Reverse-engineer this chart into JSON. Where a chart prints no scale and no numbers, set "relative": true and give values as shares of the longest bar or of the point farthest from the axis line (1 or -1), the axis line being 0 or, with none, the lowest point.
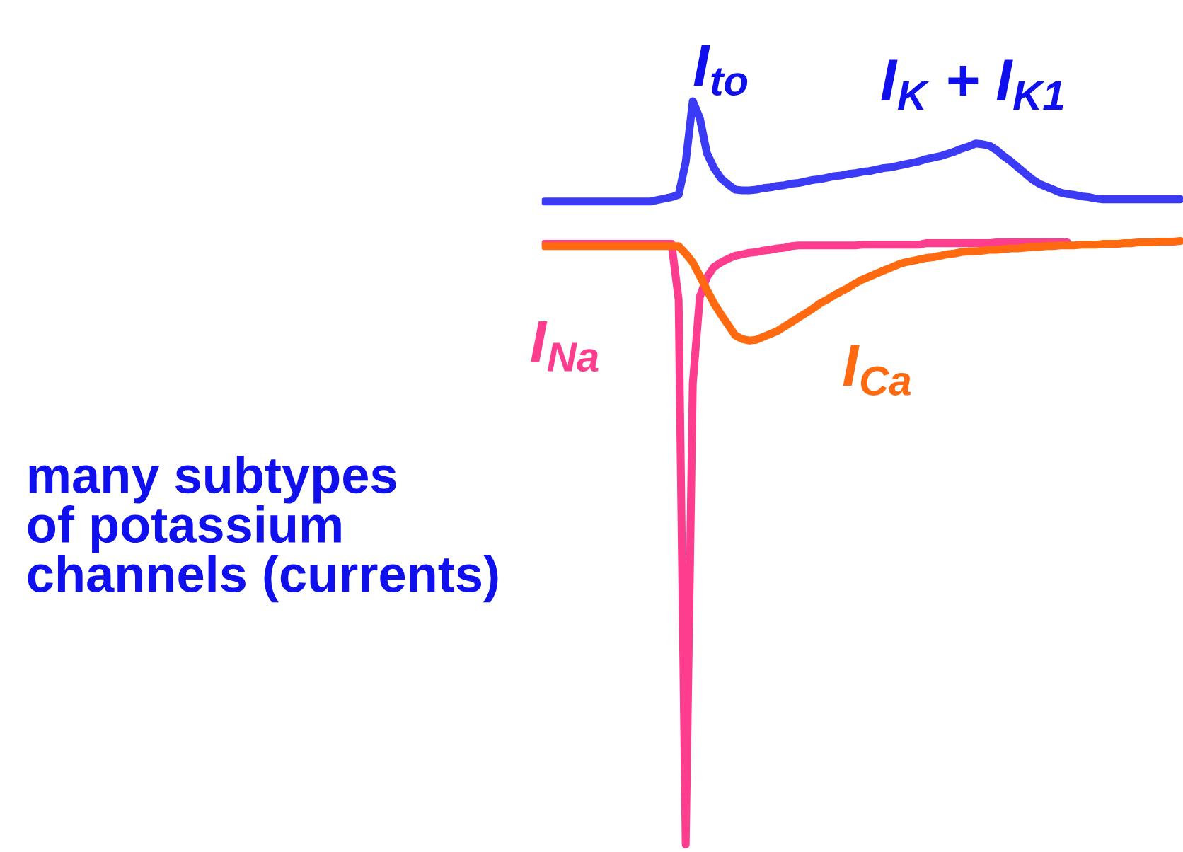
{
  "chart_data": {
    "type": "line",
    "relative": true,
    "legend": false,
    "marker": "none",
    "line_style": "solid",
    "categories": [
      null,
      null,
      null,
      null,
      null,
      null,
      null,
      null,
      null,
      null,
      null,
      null,
      null,
      null,
      null,
      null,
      null,
      null,
      null,
      null,
      null,
      null,
      null,
      null,
      null,
      null,
      null,
      null,
      null,
      null,
      null,
      null,
      null,
      null,
      null,
      null,
      null,
      null,
      null,
      null,
      null,
      null,
      null,
      null,
      null,
      null,
      null,
      null,
      null,
      null,
      null,
      null,
      null,
      null,
      null,
      null,
      null,
      null,
      null,
      null,
      null,
      null,
      null,
      null,
      null,
      null,
      null,
      null,
      null,
      null,
      null,
      null,
      null,
      null,
      null,
      null,
      null,
      null,
      null,
      null,
      null,
      null,
      null,
      null,
      null,
      null,
      null,
      null,
      null,
      null,
      null
    ],
    "series": [
      {
        "color": "#3b3bf5",
        "values": [
          0.865,
          0.865,
          0.865,
          0.865,
          0.865,
          0.865,
          0.865,
          0.865,
          0.865,
          0.865,
          0.865,
          0.865,
          0.865,
          0.865,
          0.865,
          0.865,
          0.867,
          0.869,
          0.871,
          0.874,
          0.918,
          1,
          0.977,
          0.93,
          0.91,
          0.896,
          0.888,
          0.881,
          0.88,
          0.88,
          0.881,
          0.883,
          0.884,
          0.886,
          0.887,
          0.889,
          0.89,
          0.892,
          0.894,
          0.895,
          0.897,
          0.899,
          0.9,
          0.902,
          0.903,
          0.905,
          0.906,
          0.908,
          0.91,
          0.911,
          0.913,
          0.915,
          0.917,
          0.919,
          0.922,
          0.924,
          0.926,
          0.929,
          0.932,
          0.936,
          0.939,
          0.943,
          0.942,
          0.94,
          0.934,
          0.926,
          0.919,
          0.911,
          0.903,
          0.895,
          0.889,
          0.885,
          0.881,
          0.877,
          0.875,
          0.874,
          0.872,
          0.871,
          0.869,
          0.868,
          0.868,
          0.868,
          0.868,
          0.868,
          0.868,
          0.868,
          0.868,
          0.868,
          0.868,
          0.868,
          0.868
        ]
      },
      {
        "name": "I$_{Na}$",
        "color": "#ff3d8f",
        "values": [
          0.808,
          0.808,
          0.808,
          0.808,
          0.808,
          0.808,
          0.808,
          0.808,
          0.808,
          0.808,
          0.808,
          0.808,
          0.808,
          0.808,
          0.808,
          0.808,
          0.808,
          0.808,
          0.808,
          0.733,
          0,
          0.62,
          0.737,
          0.763,
          0.777,
          0.783,
          0.788,
          0.792,
          0.794,
          0.796,
          0.797,
          0.799,
          0.8,
          0.802,
          0.803,
          0.805,
          0.806,
          0.806,
          0.806,
          0.806,
          0.806,
          0.806,
          0.806,
          0.806,
          0.806,
          0.807,
          0.807,
          0.807,
          0.807,
          0.807,
          0.807,
          0.807,
          0.807,
          0.807,
          0.809,
          0.809,
          0.809,
          0.809,
          0.809,
          0.809,
          0.809,
          0.809,
          0.809,
          0.809,
          0.81,
          0.81,
          0.81,
          0.81,
          0.81,
          0.81,
          0.81,
          0.81,
          0.81,
          0.81,
          0.81,
          null,
          null,
          null,
          null,
          null,
          null,
          null,
          null,
          null,
          null,
          null,
          null,
          null,
          null,
          null,
          null
        ]
      },
      {
        "name": "I$_{Ca}$",
        "color": "#ff6a10",
        "values": [
          0.805,
          0.805,
          0.805,
          0.805,
          0.805,
          0.805,
          0.805,
          0.805,
          0.805,
          0.805,
          0.805,
          0.805,
          0.805,
          0.805,
          0.805,
          0.805,
          0.805,
          0.805,
          0.805,
          0.805,
          0.795,
          0.783,
          0.765,
          0.746,
          0.728,
          0.713,
          0.699,
          0.685,
          0.68,
          0.678,
          0.679,
          0.683,
          0.687,
          0.691,
          0.697,
          0.703,
          0.709,
          0.715,
          0.721,
          0.728,
          0.733,
          0.739,
          0.744,
          0.749,
          0.755,
          0.76,
          0.764,
          0.768,
          0.772,
          0.776,
          0.78,
          0.783,
          0.785,
          0.787,
          0.789,
          0.79,
          0.792,
          0.794,
          0.795,
          0.797,
          0.798,
          0.798,
          0.799,
          0.8,
          0.8,
          0.801,
          0.802,
          0.802,
          0.803,
          0.804,
          0.804,
          0.805,
          0.805,
          0.806,
          0.806,
          0.806,
          0.807,
          0.807,
          0.807,
          0.808,
          0.808,
          0.808,
          0.809,
          0.809,
          0.81,
          0.81,
          0.81,
          0.811,
          0.811,
          0.811,
          0.812
        ]
      }
    ],
    "annotations": [
      "I$_{to}$",
      "I$_{K}$ + I$_{K1}$",
      "many subtypes\nof potassium\nchannels (currents)"
    ]
  }
}
